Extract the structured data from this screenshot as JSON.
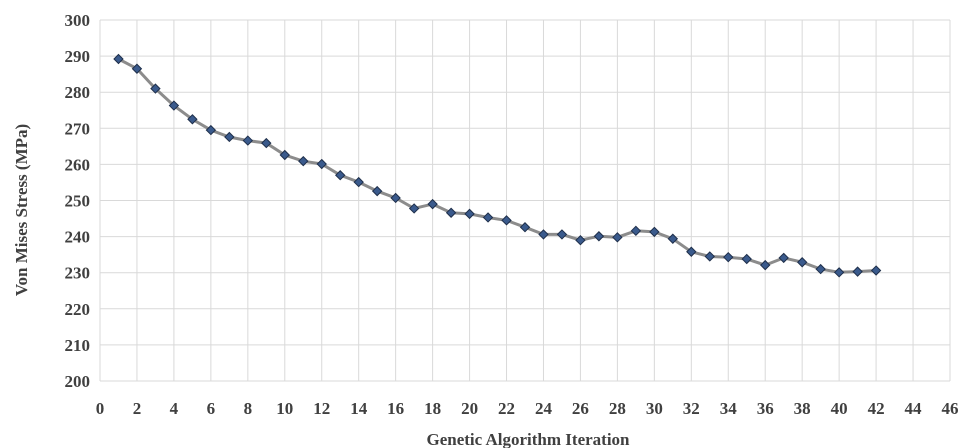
{
  "chart_data": {
    "type": "line",
    "xlabel": "Genetic Algorithm Iteration",
    "ylabel": "Von Mises Stress (MPa)",
    "xlim": [
      0,
      46
    ],
    "ylim": [
      200,
      300
    ],
    "x_ticks": [
      0,
      2,
      4,
      6,
      8,
      10,
      12,
      14,
      16,
      18,
      20,
      22,
      24,
      26,
      28,
      30,
      32,
      34,
      36,
      38,
      40,
      42,
      44,
      46
    ],
    "y_ticks": [
      200,
      210,
      220,
      230,
      240,
      250,
      260,
      270,
      280,
      290,
      300
    ],
    "grid": true,
    "legend": "none",
    "colors": {
      "line": "#8c8c8c",
      "marker_fill": "#3a5a8c",
      "marker_stroke": "#1f2f4a",
      "grid": "#d9d9d9"
    },
    "series": [
      {
        "x": [
          1,
          2,
          3,
          4,
          5,
          6,
          7,
          8,
          9,
          10,
          11,
          12,
          13,
          14,
          15,
          16,
          17,
          18,
          19,
          20,
          21,
          22,
          23,
          24,
          25,
          26,
          27,
          28,
          29,
          30,
          31,
          32,
          33,
          34,
          35,
          36,
          37,
          38,
          39,
          40,
          41,
          42
        ],
        "y": [
          289.2,
          286.5,
          281.0,
          276.3,
          272.5,
          269.5,
          267.6,
          266.6,
          265.9,
          262.6,
          260.9,
          260.1,
          257.0,
          255.1,
          252.6,
          250.7,
          247.8,
          249.0,
          246.6,
          246.3,
          245.3,
          244.5,
          242.6,
          240.6,
          240.6,
          239.0,
          240.1,
          239.8,
          241.6,
          241.3,
          239.4,
          235.8,
          234.5,
          234.3,
          233.8,
          232.1,
          234.1,
          232.9,
          231.0,
          230.1,
          230.3,
          230.6
        ]
      }
    ]
  }
}
